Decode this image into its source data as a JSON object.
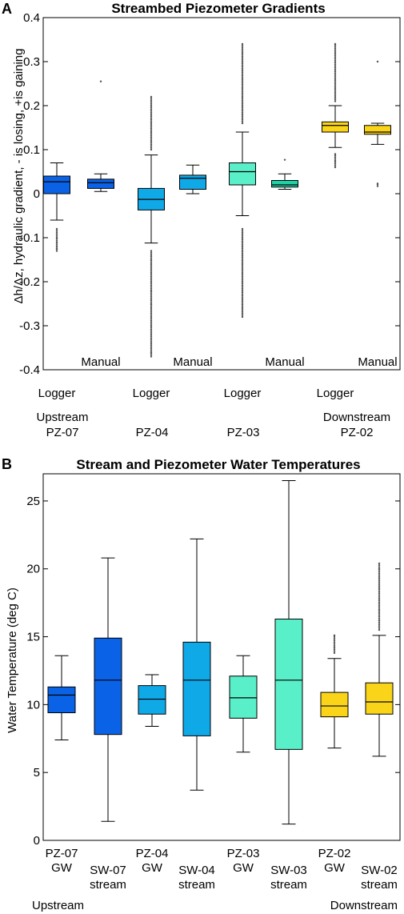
{
  "chart_data": [
    {
      "type": "box",
      "panel": "A",
      "title": "Streambed Piezometer Gradients",
      "ylabel": "Δh/Δz, hydraulic gradient, - is losing, +is gaining",
      "ylim": [
        -0.4,
        0.4
      ],
      "yticks": [
        -0.4,
        -0.3,
        -0.2,
        -0.1,
        0,
        0.1,
        0.2,
        0.3,
        0.4
      ],
      "ytick_labels": [
        "-0.4",
        "-0.3",
        "-0.2",
        "-0.1",
        "0",
        "0.1",
        "0.2",
        "0.3",
        "0.4"
      ],
      "category_labels": [
        {
          "text": "Logger",
          "row": 1
        },
        {
          "text": "Manual",
          "row": 0
        },
        {
          "text": "Logger",
          "row": 1
        },
        {
          "text": "Manual",
          "row": 0
        },
        {
          "text": "Logger",
          "row": 1
        },
        {
          "text": "Manual",
          "row": 0
        },
        {
          "text": "Logger",
          "row": 1
        },
        {
          "text": "Manual",
          "row": 0
        }
      ],
      "group_labels": [
        {
          "line1": "Upstream",
          "line2": "PZ-07"
        },
        {
          "line1": "",
          "line2": "PZ-04"
        },
        {
          "line1": "",
          "line2": "PZ-03"
        },
        {
          "line1": "Downstream",
          "line2": "PZ-02"
        }
      ],
      "boxes": [
        {
          "color": "#0a63e6",
          "whislo": -0.06,
          "q1": 0.0,
          "med": 0.027,
          "q3": 0.04,
          "whishi": 0.07,
          "fliers": [
            -0.08,
            -0.1,
            -0.11,
            -0.12,
            -0.125,
            -0.13
          ]
        },
        {
          "color": "#0a63e6",
          "whislo": 0.005,
          "q1": 0.012,
          "med": 0.025,
          "q3": 0.033,
          "whishi": 0.045,
          "fliers": [
            0.255
          ]
        },
        {
          "color": "#0fa9e8",
          "whislo": -0.112,
          "q1": -0.037,
          "med": -0.013,
          "q3": 0.012,
          "whishi": 0.088,
          "fliers": [
            0.1,
            0.12,
            0.14,
            0.16,
            0.18,
            0.2,
            0.22,
            -0.13,
            -0.15,
            -0.18,
            -0.2,
            -0.22,
            -0.25,
            -0.28,
            -0.3,
            -0.32,
            -0.34,
            -0.36,
            -0.37
          ]
        },
        {
          "color": "#0fa9e8",
          "whislo": 0.0,
          "q1": 0.01,
          "med": 0.035,
          "q3": 0.042,
          "whishi": 0.065,
          "fliers": []
        },
        {
          "color": "#59efc9",
          "whislo": -0.05,
          "q1": 0.02,
          "med": 0.05,
          "q3": 0.07,
          "whishi": 0.14,
          "fliers": [
            0.16,
            0.2,
            0.24,
            0.28,
            0.32,
            0.34,
            -0.08,
            -0.12,
            -0.16,
            -0.2,
            -0.24,
            -0.28
          ]
        },
        {
          "color": "#1fd1a6",
          "whislo": 0.01,
          "q1": 0.015,
          "med": 0.02,
          "q3": 0.03,
          "whishi": 0.045,
          "fliers": [
            0.077
          ]
        },
        {
          "color": "#f9d418",
          "whislo": 0.105,
          "q1": 0.14,
          "med": 0.155,
          "q3": 0.163,
          "whishi": 0.2,
          "fliers": [
            0.21,
            0.23,
            0.25,
            0.27,
            0.29,
            0.31,
            0.33,
            0.34,
            0.09,
            0.075,
            0.06
          ]
        },
        {
          "color": "#f9d418",
          "whislo": 0.112,
          "q1": 0.135,
          "med": 0.14,
          "q3": 0.155,
          "whishi": 0.16,
          "fliers": [
            0.3,
            0.023,
            0.017
          ]
        }
      ]
    },
    {
      "type": "box",
      "panel": "B",
      "title": "Stream and Piezometer Water Temperatures",
      "ylabel": "Water Temperature (deg C)",
      "ylim": [
        0,
        27
      ],
      "yticks": [
        0,
        5,
        10,
        15,
        20,
        25
      ],
      "ytick_labels": [
        "0",
        "5",
        "10",
        "15",
        "20",
        "25"
      ],
      "category_labels": [
        {
          "line1": "PZ-07",
          "line2": "GW",
          "row": 0
        },
        {
          "line1": "SW-07",
          "line2": "stream",
          "row": 1
        },
        {
          "line1": "PZ-04",
          "line2": "GW",
          "row": 0
        },
        {
          "line1": "SW-04",
          "line2": "stream",
          "row": 1
        },
        {
          "line1": "PZ-03",
          "line2": "GW",
          "row": 0
        },
        {
          "line1": "SW-03",
          "line2": "stream",
          "row": 1
        },
        {
          "line1": "PZ-02",
          "line2": "GW",
          "row": 0
        },
        {
          "line1": "SW-02",
          "line2": "stream",
          "row": 1
        }
      ],
      "group_labels": [
        "Upstream",
        "Downstream"
      ],
      "boxes": [
        {
          "color": "#0a63e6",
          "whislo": 7.4,
          "q1": 9.4,
          "med": 10.7,
          "q3": 11.3,
          "whishi": 13.6,
          "fliers": []
        },
        {
          "color": "#0a63e6",
          "whislo": 1.4,
          "q1": 7.8,
          "med": 11.8,
          "q3": 14.9,
          "whishi": 20.8,
          "fliers": []
        },
        {
          "color": "#0fa9e8",
          "whislo": 8.4,
          "q1": 9.3,
          "med": 10.4,
          "q3": 11.4,
          "whishi": 12.2,
          "fliers": []
        },
        {
          "color": "#0fa9e8",
          "whislo": 3.7,
          "q1": 7.7,
          "med": 11.8,
          "q3": 14.6,
          "whishi": 22.2,
          "fliers": []
        },
        {
          "color": "#59efc9",
          "whislo": 6.5,
          "q1": 9.0,
          "med": 10.5,
          "q3": 12.1,
          "whishi": 13.6,
          "fliers": []
        },
        {
          "color": "#59efc9",
          "whislo": 1.2,
          "q1": 6.7,
          "med": 11.8,
          "q3": 16.3,
          "whishi": 26.5,
          "fliers": []
        },
        {
          "color": "#f9d418",
          "whislo": 6.8,
          "q1": 9.1,
          "med": 9.9,
          "q3": 10.9,
          "whishi": 13.4,
          "fliers": [
            13.8,
            14.2,
            14.6,
            15.1
          ]
        },
        {
          "color": "#f9d418",
          "whislo": 6.2,
          "q1": 9.3,
          "med": 10.2,
          "q3": 11.6,
          "whishi": 15.1,
          "fliers": [
            15.5,
            16.2,
            17.0,
            17.8,
            18.6,
            19.4,
            20.0,
            20.4
          ]
        }
      ]
    }
  ]
}
